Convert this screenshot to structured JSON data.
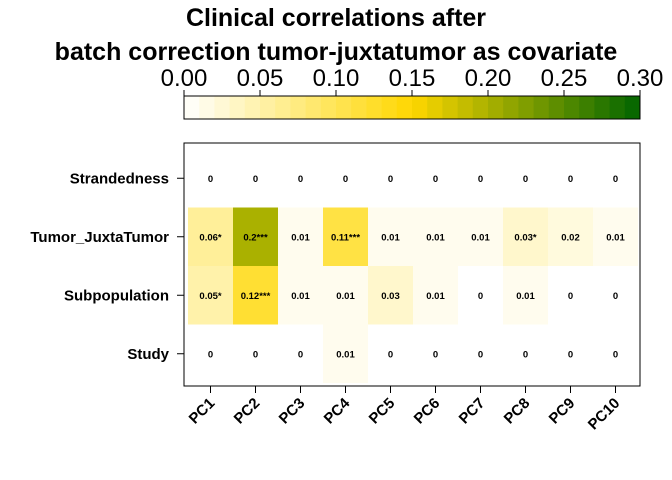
{
  "chart_data": {
    "type": "heatmap",
    "title_lines": [
      "Clinical correlations after",
      "batch correction tumor-juxtatumor as covariate"
    ],
    "colorbar": {
      "ticks": [
        "0.00",
        "0.05",
        "0.10",
        "0.15",
        "0.20",
        "0.25",
        "0.30"
      ],
      "range": [
        0,
        0.3
      ],
      "low_color": "#ffffff",
      "mid_color": "#ffd700",
      "high_color": "#006400"
    },
    "rows": [
      "Strandedness",
      "Tumor_JuxtaTumor",
      "Subpopulation",
      "Study"
    ],
    "columns": [
      "PC1",
      "PC2",
      "PC3",
      "PC4",
      "PC5",
      "PC6",
      "PC7",
      "PC8",
      "PC9",
      "PC10"
    ],
    "values": [
      [
        0,
        0,
        0,
        0,
        0,
        0,
        0,
        0,
        0,
        0
      ],
      [
        0.06,
        0.2,
        0.01,
        0.11,
        0.01,
        0.01,
        0.01,
        0.03,
        0.02,
        0.01
      ],
      [
        0.05,
        0.12,
        0.01,
        0.01,
        0.03,
        0.01,
        0,
        0.01,
        0,
        0
      ],
      [
        0,
        0,
        0,
        0.01,
        0,
        0,
        0,
        0,
        0,
        0
      ]
    ],
    "labels": [
      [
        "0",
        "0",
        "0",
        "0",
        "0",
        "0",
        "0",
        "0",
        "0",
        "0"
      ],
      [
        "0.06*",
        "0.2***",
        "0.01",
        "0.11***",
        "0.01",
        "0.01",
        "0.01",
        "0.03*",
        "0.02",
        "0.01"
      ],
      [
        "0.05*",
        "0.12***",
        "0.01",
        "0.01",
        "0.03",
        "0.01",
        "0",
        "0.01",
        "0",
        "0"
      ],
      [
        "0",
        "0",
        "0",
        "0.01",
        "0",
        "0",
        "0",
        "0",
        "0",
        "0"
      ]
    ]
  }
}
